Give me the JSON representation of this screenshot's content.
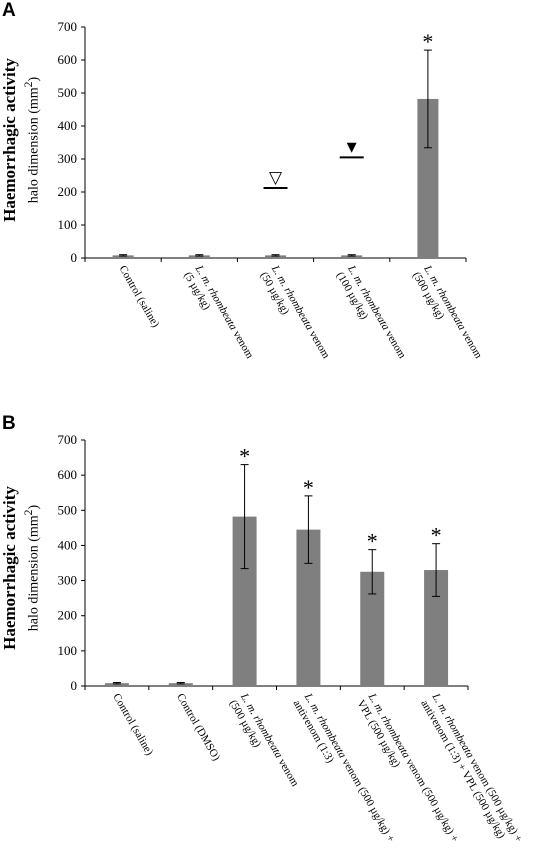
{
  "panels": {
    "a": {
      "letter": "A"
    },
    "b": {
      "letter": "B"
    }
  },
  "chart_data": [
    {
      "type": "bar",
      "panel": "A",
      "ylabel": "Haemorrhagic activity",
      "ylabel_sub": "halo dimension (mm",
      "ylabel_sup": "2",
      "ylabel_end": ")",
      "ylim": [
        0,
        700
      ],
      "yticks": [
        "0",
        "100",
        "200",
        "300",
        "400",
        "500",
        "600",
        "700"
      ],
      "grid": false,
      "categories": [
        [
          "Control (saline)"
        ],
        [
          "L. m. rhombeata venom",
          "(5 µg/kg)"
        ],
        [
          "L. m. rhombeata venom",
          "(50 µg/kg)"
        ],
        [
          "L. m. rhombeata venom",
          "(100 µg/kg)"
        ],
        [
          "L. m. rhombeata venom",
          "(500 µg/kg)"
        ]
      ],
      "values": [
        8,
        8,
        8,
        8,
        482
      ],
      "errors": [
        2,
        2,
        2,
        2,
        148
      ],
      "significance": [
        "",
        "",
        "",
        "",
        "*"
      ],
      "annotations": [
        {
          "category": 2,
          "symbol": "▽",
          "level": 212
        },
        {
          "category": 3,
          "symbol": "▼",
          "level": 305
        }
      ],
      "bar_color": "#7f7f7f"
    },
    {
      "type": "bar",
      "panel": "B",
      "ylabel": "Haemorrhagic activity",
      "ylabel_sub": "halo dimension (mm",
      "ylabel_sup": "2",
      "ylabel_end": ")",
      "ylim": [
        0,
        700
      ],
      "yticks": [
        "0",
        "100",
        "200",
        "300",
        "400",
        "500",
        "600",
        "700"
      ],
      "grid": false,
      "categories": [
        [
          "Control (saline)"
        ],
        [
          "Control (DMSO)"
        ],
        [
          "L. m. rhombeata venom",
          "(500 µg/kg)"
        ],
        [
          "L. m. rhombeata venom (500 µg/kg) +",
          "antivenom (1:3)"
        ],
        [
          "L. m. rhombeata venom (500 µg/kg) +",
          "VPL (500 µg/kg)"
        ],
        [
          "L. m. rhombeata venom (500 µg/kg) +",
          "antivenom (1:3) + VPL (500 µg/kg)"
        ]
      ],
      "values": [
        8,
        8,
        482,
        445,
        325,
        330
      ],
      "errors": [
        2,
        2,
        148,
        96,
        63,
        75
      ],
      "significance": [
        "",
        "",
        "*",
        "*",
        "*",
        "*"
      ],
      "annotations": [],
      "bar_color": "#7f7f7f"
    }
  ]
}
